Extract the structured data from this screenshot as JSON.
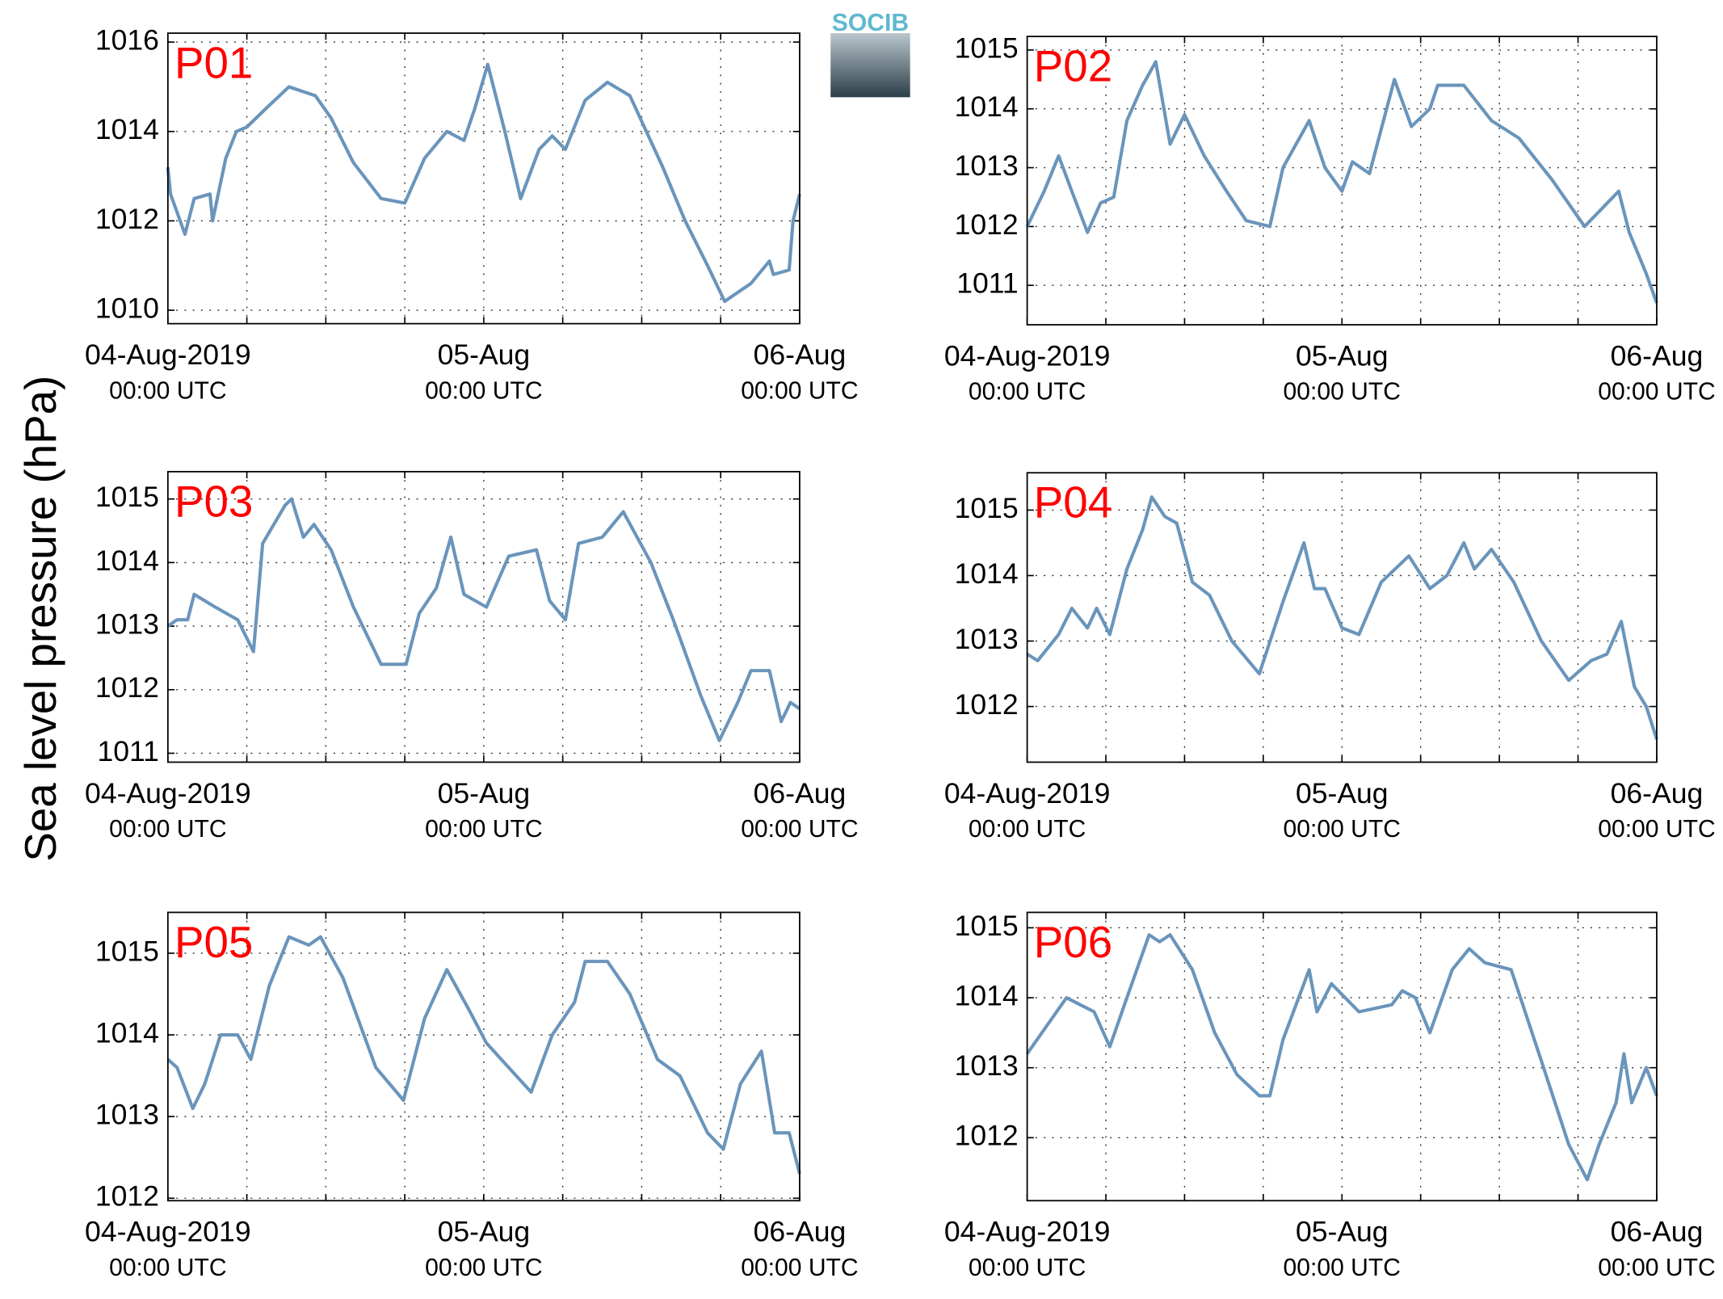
{
  "ylabel": "Sea level pressure (hPa)",
  "logo": "SOCIB",
  "chart_data": [
    {
      "type": "line",
      "label": "P01",
      "color": "#6a95bb",
      "xlim": [
        0,
        48
      ],
      "ylim": [
        1009.7,
        1016.2
      ],
      "yticks": [
        1010,
        1012,
        1014,
        1016
      ],
      "xticks": [
        {
          "value": 0,
          "label": "04-Aug-2019",
          "sublabel": "00:00 UTC"
        },
        {
          "value": 24,
          "label": "05-Aug",
          "sublabel": "00:00 UTC"
        },
        {
          "value": 48,
          "label": "06-Aug",
          "sublabel": "00:00 UTC"
        }
      ],
      "xminor": [
        6,
        12,
        18,
        30,
        36,
        42
      ],
      "grid": true,
      "x": [
        0,
        0.2,
        1.3,
        2,
        3.2,
        3.4,
        4.4,
        5.2,
        6,
        7.4,
        9.2,
        11.2,
        12.4,
        14.1,
        16.2,
        18,
        19.5,
        21.2,
        22.5,
        23.3,
        24.3,
        25.6,
        26.8,
        28.2,
        29.2,
        30.2,
        31.7,
        33.4,
        35.1,
        37.6,
        39.3,
        41,
        42.3,
        44.3,
        45.7,
        46,
        47.2,
        47.5,
        48
      ],
      "values": [
        1013.2,
        1012.6,
        1011.7,
        1012.5,
        1012.6,
        1012.0,
        1013.4,
        1014.0,
        1014.1,
        1014.5,
        1015.0,
        1014.8,
        1014.3,
        1013.3,
        1012.5,
        1012.4,
        1013.4,
        1014.0,
        1013.8,
        1014.5,
        1015.5,
        1014.0,
        1012.5,
        1013.6,
        1013.9,
        1013.6,
        1014.7,
        1015.1,
        1014.8,
        1013.2,
        1012.0,
        1011.0,
        1010.2,
        1010.6,
        1011.1,
        1010.8,
        1010.9,
        1012.0,
        1012.6
      ]
    },
    {
      "type": "line",
      "label": "P02",
      "color": "#6a95bb",
      "xlim": [
        0,
        48
      ],
      "ylim": [
        1010.33,
        1015.23
      ],
      "yticks": [
        1011,
        1012,
        1013,
        1014,
        1015
      ],
      "xticks": [
        {
          "value": 0,
          "label": "04-Aug-2019",
          "sublabel": "00:00 UTC"
        },
        {
          "value": 24,
          "label": "05-Aug",
          "sublabel": "00:00 UTC"
        },
        {
          "value": 48,
          "label": "06-Aug",
          "sublabel": "00:00 UTC"
        }
      ],
      "xminor": [
        6,
        12,
        18,
        30,
        36,
        42
      ],
      "grid": true,
      "x": [
        0,
        1.3,
        2.4,
        3.4,
        4.6,
        5.6,
        6.6,
        7.6,
        8.8,
        9.8,
        10.9,
        12,
        13.5,
        15.2,
        16.7,
        18.5,
        19.5,
        21.5,
        22.7,
        24,
        24.8,
        26.1,
        28,
        29.3,
        30.7,
        31.3,
        33.3,
        35.4,
        37.5,
        40,
        42.5,
        45.1,
        45.9,
        47.2,
        48
      ],
      "values": [
        1012.0,
        1012.6,
        1013.2,
        1012.6,
        1011.9,
        1012.4,
        1012.5,
        1013.8,
        1014.4,
        1014.8,
        1013.4,
        1013.9,
        1013.2,
        1012.6,
        1012.1,
        1012.0,
        1013.0,
        1013.8,
        1013.0,
        1012.6,
        1013.1,
        1012.9,
        1014.5,
        1013.7,
        1014.0,
        1014.4,
        1014.4,
        1013.8,
        1013.5,
        1012.8,
        1012.0,
        1012.6,
        1011.9,
        1011.2,
        1010.7
      ]
    },
    {
      "type": "line",
      "label": "P03",
      "color": "#6a95bb",
      "xlim": [
        0,
        48
      ],
      "ylim": [
        1010.86,
        1015.43
      ],
      "yticks": [
        1011,
        1012,
        1013,
        1014,
        1015
      ],
      "xticks": [
        {
          "value": 0,
          "label": "04-Aug-2019",
          "sublabel": "00:00 UTC"
        },
        {
          "value": 24,
          "label": "05-Aug",
          "sublabel": "00:00 UTC"
        },
        {
          "value": 48,
          "label": "06-Aug",
          "sublabel": "00:00 UTC"
        }
      ],
      "xminor": [
        6,
        12,
        18,
        30,
        36,
        42
      ],
      "grid": true,
      "x": [
        0,
        0.7,
        1.5,
        2,
        3.6,
        5.3,
        6.5,
        7.2,
        8.9,
        9.4,
        10.3,
        11.1,
        12.4,
        14.1,
        16.2,
        18.1,
        19.1,
        20.4,
        21.5,
        22.5,
        24.2,
        25.9,
        28,
        29,
        30.2,
        31.2,
        33,
        34.6,
        36.7,
        38.4,
        40.5,
        41.9,
        43.3,
        44.3,
        45.7,
        46.6,
        47.3,
        48
      ],
      "values": [
        1013.0,
        1013.1,
        1013.1,
        1013.5,
        1013.3,
        1013.1,
        1012.6,
        1014.3,
        1014.9,
        1015.0,
        1014.4,
        1014.6,
        1014.2,
        1013.3,
        1012.4,
        1012.4,
        1013.2,
        1013.6,
        1014.4,
        1013.5,
        1013.3,
        1014.1,
        1014.2,
        1013.4,
        1013.1,
        1014.3,
        1014.4,
        1014.8,
        1014.0,
        1013.1,
        1011.9,
        1011.2,
        1011.8,
        1012.3,
        1012.3,
        1011.5,
        1011.8,
        1011.7
      ]
    },
    {
      "type": "line",
      "label": "P04",
      "color": "#6a95bb",
      "xlim": [
        0,
        48
      ],
      "ylim": [
        1011.15,
        1015.57
      ],
      "yticks": [
        1012,
        1013,
        1014,
        1015
      ],
      "xticks": [
        {
          "value": 0,
          "label": "04-Aug-2019",
          "sublabel": "00:00 UTC"
        },
        {
          "value": 24,
          "label": "05-Aug",
          "sublabel": "00:00 UTC"
        },
        {
          "value": 48,
          "label": "06-Aug",
          "sublabel": "00:00 UTC"
        }
      ],
      "xminor": [
        6,
        12,
        18,
        30,
        36,
        42
      ],
      "grid": true,
      "x": [
        0,
        0.8,
        2.4,
        3.4,
        4.6,
        5.3,
        6.3,
        7.6,
        8.8,
        9.5,
        10.5,
        11.4,
        12.6,
        13.9,
        15.6,
        17.7,
        19.5,
        21.1,
        21.9,
        22.7,
        24,
        25.3,
        27,
        29.1,
        30.7,
        32,
        33.3,
        34.1,
        35.4,
        37.1,
        39.2,
        41.3,
        43,
        44.2,
        45.3,
        46.3,
        47.2,
        48
      ],
      "values": [
        1012.8,
        1012.7,
        1013.1,
        1013.5,
        1013.2,
        1013.5,
        1013.1,
        1014.1,
        1014.7,
        1015.2,
        1014.9,
        1014.8,
        1013.9,
        1013.7,
        1013.0,
        1012.5,
        1013.6,
        1014.5,
        1013.8,
        1013.8,
        1013.2,
        1013.1,
        1013.9,
        1014.3,
        1013.8,
        1014.0,
        1014.5,
        1014.1,
        1014.4,
        1013.9,
        1013.0,
        1012.4,
        1012.7,
        1012.8,
        1013.3,
        1012.3,
        1012.0,
        1011.5
      ]
    },
    {
      "type": "line",
      "label": "P05",
      "color": "#6a95bb",
      "xlim": [
        0,
        48
      ],
      "ylim": [
        1011.97,
        1015.5
      ],
      "yticks": [
        1012,
        1013,
        1014,
        1015
      ],
      "xticks": [
        {
          "value": 0,
          "label": "04-Aug-2019",
          "sublabel": "00:00 UTC"
        },
        {
          "value": 24,
          "label": "05-Aug",
          "sublabel": "00:00 UTC"
        },
        {
          "value": 48,
          "label": "06-Aug",
          "sublabel": "00:00 UTC"
        }
      ],
      "xminor": [
        6,
        12,
        18,
        30,
        36,
        42
      ],
      "grid": true,
      "x": [
        0,
        0.7,
        1.9,
        2.8,
        4,
        5.3,
        6.3,
        7.7,
        9.2,
        10.7,
        11.6,
        13.3,
        15.8,
        17.9,
        19.5,
        21.2,
        22.9,
        24.2,
        25.9,
        27.6,
        29.2,
        30.9,
        31.7,
        33.4,
        35.1,
        37.2,
        38.9,
        41,
        42.2,
        43.5,
        45.1,
        46.1,
        47.2,
        48
      ],
      "values": [
        1013.7,
        1013.6,
        1013.1,
        1013.4,
        1014.0,
        1014.0,
        1013.7,
        1014.6,
        1015.2,
        1015.1,
        1015.2,
        1014.7,
        1013.6,
        1013.2,
        1014.2,
        1014.8,
        1014.3,
        1013.9,
        1013.6,
        1013.3,
        1014.0,
        1014.4,
        1014.9,
        1014.9,
        1014.5,
        1013.7,
        1013.5,
        1012.8,
        1012.6,
        1013.4,
        1013.8,
        1012.8,
        1012.8,
        1012.3
      ]
    },
    {
      "type": "line",
      "label": "P06",
      "color": "#6a95bb",
      "xlim": [
        0,
        48
      ],
      "ylim": [
        1011.1,
        1015.22
      ],
      "yticks": [
        1012,
        1013,
        1014,
        1015
      ],
      "xticks": [
        {
          "value": 0,
          "label": "04-Aug-2019",
          "sublabel": "00:00 UTC"
        },
        {
          "value": 24,
          "label": "05-Aug",
          "sublabel": "00:00 UTC"
        },
        {
          "value": 48,
          "label": "06-Aug",
          "sublabel": "00:00 UTC"
        }
      ],
      "xminor": [
        6,
        12,
        18,
        30,
        36,
        42
      ],
      "grid": true,
      "x": [
        0,
        1.5,
        3,
        5.1,
        6.3,
        7.6,
        9.3,
        10.1,
        10.9,
        12.6,
        14.3,
        16,
        17.7,
        18.5,
        19.5,
        21.5,
        22.1,
        23.2,
        25.3,
        27.8,
        28.6,
        29.6,
        30.7,
        32.4,
        33.7,
        34.9,
        36.9,
        39.2,
        41.3,
        42.7,
        43.6,
        44.9,
        45.5,
        46.1,
        47.2,
        48
      ],
      "values": [
        1013.2,
        1013.6,
        1014.0,
        1013.8,
        1013.3,
        1014.0,
        1014.9,
        1014.8,
        1014.9,
        1014.4,
        1013.5,
        1012.9,
        1012.6,
        1012.6,
        1013.4,
        1014.4,
        1013.8,
        1014.2,
        1013.8,
        1013.9,
        1014.1,
        1014.0,
        1013.5,
        1014.4,
        1014.7,
        1014.5,
        1014.4,
        1013.1,
        1011.9,
        1011.4,
        1011.9,
        1012.5,
        1013.2,
        1012.5,
        1013.0,
        1012.6
      ]
    }
  ]
}
